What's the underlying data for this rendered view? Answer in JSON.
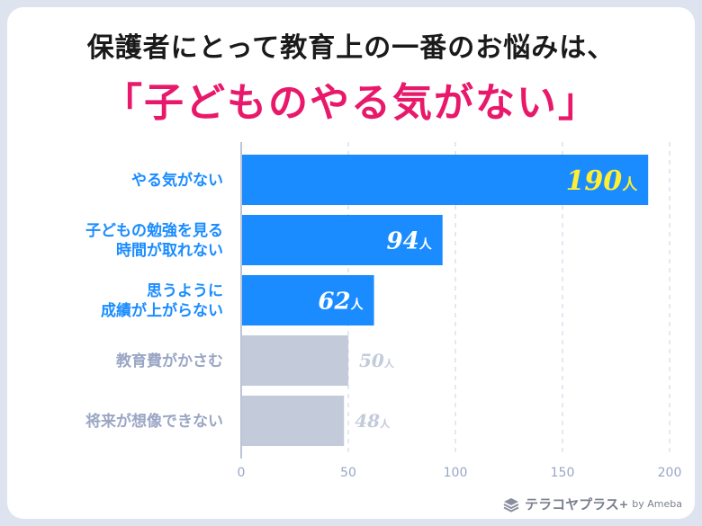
{
  "header": {
    "line1": "保護者にとって教育上の一番のお悩みは、",
    "line2": "「子どものやる気がない」"
  },
  "chart_data": {
    "type": "bar",
    "orientation": "horizontal",
    "categories": [
      [
        "やる気がない"
      ],
      [
        "子どもの勉強を見る",
        "時間が取れない"
      ],
      [
        "思うように",
        "成績が上がらない"
      ],
      [
        "教育費がかさむ"
      ],
      [
        "将来が想像できない"
      ]
    ],
    "values": [
      190,
      94,
      62,
      50,
      48
    ],
    "unit": "人",
    "highlighted": [
      true,
      true,
      true,
      false,
      false
    ],
    "xlim": [
      0,
      200
    ],
    "xticks": [
      0,
      50,
      100,
      150,
      200
    ],
    "grid": true,
    "colors": {
      "highlight": "#1a8cff",
      "muted": "#c3cad9",
      "label_highlight": "#1a8cff",
      "label_muted": "#9aa6c4",
      "value_top": "#ffee33",
      "value_highlight": "#ffffff",
      "value_muted": "#c3cad9"
    }
  },
  "logo": {
    "text": "テラコヤプラス",
    "plus": "+",
    "by": "by Ameba",
    "icon": "stacked-layers-icon"
  }
}
